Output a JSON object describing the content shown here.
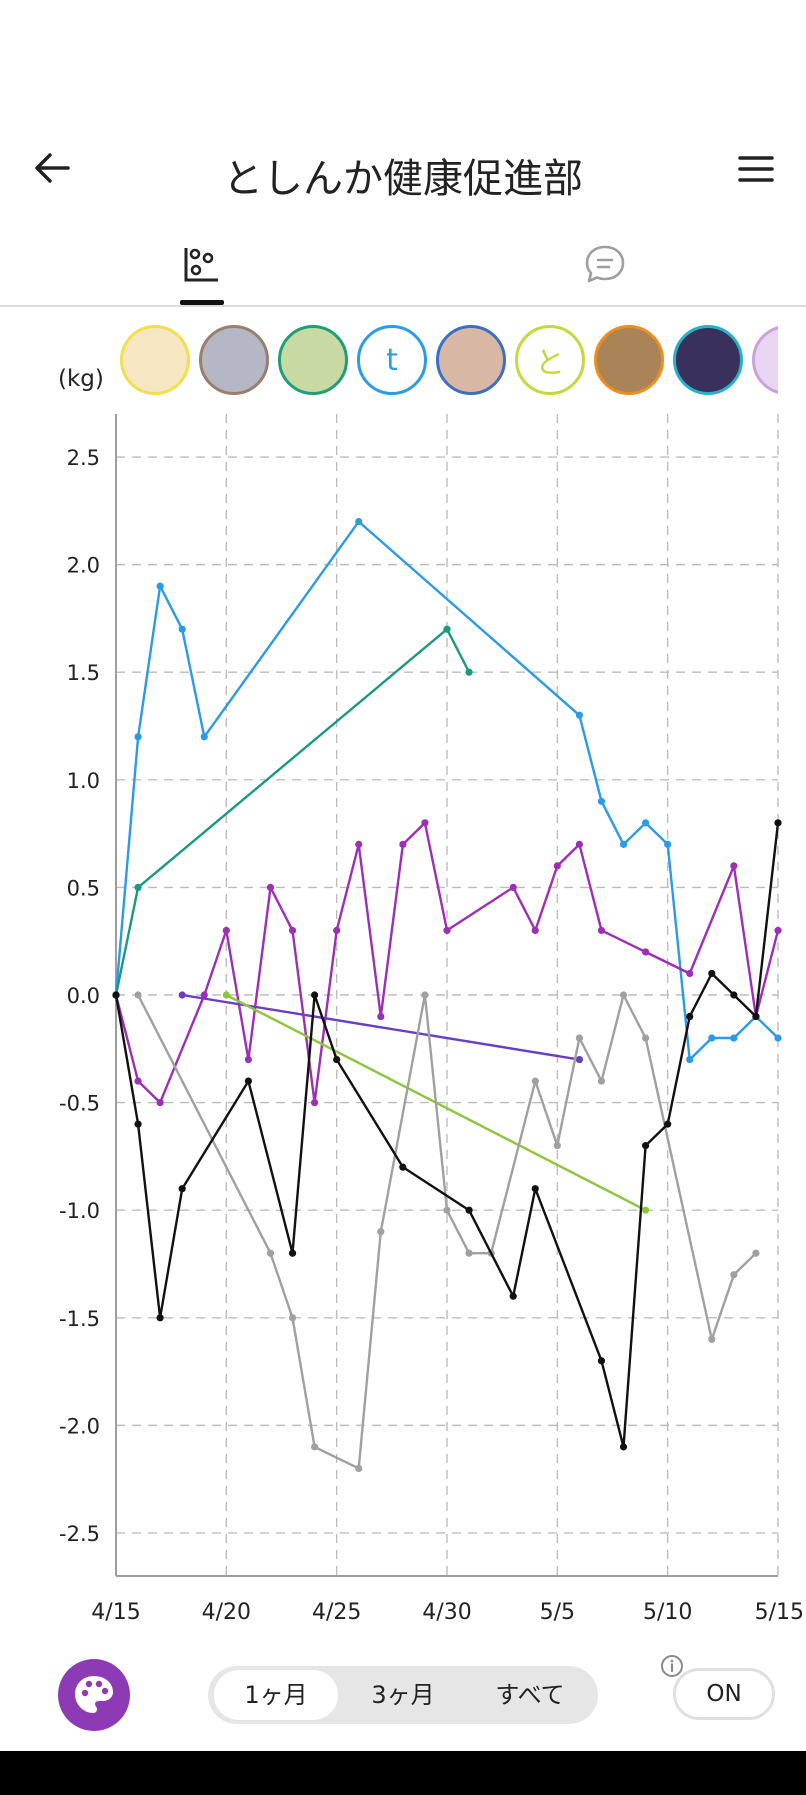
{
  "header": {
    "title": "としんか健康促進部",
    "back_icon": "arrow-left-icon",
    "menu_icon": "hamburger-menu-icon"
  },
  "tabs": [
    {
      "name": "graph",
      "icon": "scatter-chart-icon",
      "selected": true
    },
    {
      "name": "chat",
      "icon": "chat-bubble-icon",
      "selected": false
    }
  ],
  "avatars": [
    {
      "border": "#f2df4e",
      "fill": "#f6e7c2",
      "letter": ""
    },
    {
      "border": "#9a7e6e",
      "fill": "#b4b8c4",
      "letter": ""
    },
    {
      "border": "#1f9e78",
      "fill": "#c9d9a4",
      "letter": ""
    },
    {
      "border": "#2d9be6",
      "fill": "#ffffff",
      "letter": "t"
    },
    {
      "border": "#3b6fc4",
      "fill": "#d8b8a4",
      "letter": ""
    },
    {
      "border": "#c5d83d",
      "fill": "#ffffff",
      "letter": "と"
    },
    {
      "border": "#f08c1c",
      "fill": "#a88458",
      "letter": ""
    },
    {
      "border": "#27b3c7",
      "fill": "#39315c",
      "letter": ""
    },
    {
      "border": "#c9a2dc",
      "fill": "#e8d6f0",
      "letter": ""
    }
  ],
  "unit_label": "(kg)",
  "chart_data": {
    "type": "line",
    "x_start": "2024-04-15",
    "x_labels": [
      "4/15",
      "4/20",
      "4/25",
      "4/30",
      "5/5",
      "5/10",
      "5/15"
    ],
    "xlim": [
      0,
      30
    ],
    "ylim": [
      -2.7,
      2.7
    ],
    "y_ticks": [
      "2.5",
      "2.0",
      "1.5",
      "1.0",
      "0.5",
      "0.0",
      "-0.5",
      "-1.0",
      "-1.5",
      "-2.0",
      "-2.5"
    ],
    "y_tick_values": [
      2.5,
      2.0,
      1.5,
      1.0,
      0.5,
      0.0,
      -0.5,
      -1.0,
      -1.5,
      -2.0,
      -2.5
    ],
    "grid": true,
    "series": [
      {
        "color": "#2b9be6",
        "points": [
          [
            0,
            0
          ],
          [
            1,
            1.2
          ],
          [
            2,
            1.9
          ],
          [
            3,
            1.7
          ],
          [
            4,
            1.2
          ],
          [
            11,
            2.2
          ],
          [
            21,
            1.3
          ],
          [
            22,
            0.9
          ],
          [
            23,
            0.7
          ],
          [
            24,
            0.8
          ],
          [
            25,
            0.7
          ],
          [
            26,
            -0.3
          ],
          [
            27,
            -0.2
          ],
          [
            28,
            -0.2
          ],
          [
            29,
            -0.1
          ],
          [
            30,
            -0.2
          ]
        ]
      },
      {
        "color": "#1a9a7e",
        "points": [
          [
            0,
            0
          ],
          [
            1,
            0.5
          ],
          [
            15,
            1.7
          ],
          [
            16,
            1.5
          ]
        ]
      },
      {
        "color": "#9c2fb5",
        "points": [
          [
            0,
            0
          ],
          [
            1,
            -0.4
          ],
          [
            2,
            -0.5
          ],
          [
            4,
            0
          ],
          [
            5,
            0.3
          ],
          [
            6,
            -0.3
          ],
          [
            7,
            0.5
          ],
          [
            8,
            0.3
          ],
          [
            9,
            -0.5
          ],
          [
            10,
            0.3
          ],
          [
            11,
            0.7
          ],
          [
            12,
            -0.1
          ],
          [
            13,
            0.7
          ],
          [
            14,
            0.8
          ],
          [
            15,
            0.3
          ],
          [
            18,
            0.5
          ],
          [
            19,
            0.3
          ],
          [
            20,
            0.6
          ],
          [
            21,
            0.7
          ],
          [
            22,
            0.3
          ],
          [
            24,
            0.2
          ],
          [
            26,
            0.1
          ],
          [
            28,
            0.6
          ],
          [
            29,
            -0.1
          ],
          [
            30,
            0.3
          ]
        ]
      },
      {
        "color": "#6a3ec4",
        "points": [
          [
            3,
            0
          ],
          [
            21,
            -0.3
          ]
        ]
      },
      {
        "color": "#8cc63f",
        "points": [
          [
            5,
            0
          ],
          [
            24,
            -1.0
          ]
        ]
      },
      {
        "color": "#a0a0a0",
        "points": [
          [
            1,
            0
          ],
          [
            7,
            -1.2
          ],
          [
            8,
            -1.5
          ],
          [
            9,
            -2.1
          ],
          [
            11,
            -2.2
          ],
          [
            12,
            -1.1
          ],
          [
            14,
            0
          ],
          [
            15,
            -1.0
          ],
          [
            16,
            -1.2
          ],
          [
            17,
            -1.2
          ],
          [
            19,
            -0.4
          ],
          [
            20,
            -0.7
          ],
          [
            21,
            -0.2
          ],
          [
            22,
            -0.4
          ],
          [
            23,
            0
          ],
          [
            24,
            -0.2
          ],
          [
            27,
            -1.6
          ],
          [
            28,
            -1.3
          ],
          [
            29,
            -1.2
          ]
        ]
      },
      {
        "color": "#111111",
        "points": [
          [
            0,
            0
          ],
          [
            1,
            -0.6
          ],
          [
            2,
            -1.5
          ],
          [
            3,
            -0.9
          ],
          [
            6,
            -0.4
          ],
          [
            8,
            -1.2
          ],
          [
            9,
            0
          ],
          [
            10,
            -0.3
          ],
          [
            13,
            -0.8
          ],
          [
            16,
            -1.0
          ],
          [
            18,
            -1.4
          ],
          [
            19,
            -0.9
          ],
          [
            22,
            -1.7
          ],
          [
            23,
            -2.1
          ],
          [
            24,
            -0.7
          ],
          [
            25,
            -0.6
          ],
          [
            26,
            -0.1
          ],
          [
            27,
            0.1
          ],
          [
            28,
            0
          ],
          [
            29,
            -0.1
          ],
          [
            30,
            0.8
          ]
        ]
      }
    ]
  },
  "bottom": {
    "palette_icon": "palette-icon",
    "periods": [
      "1ヶ月",
      "3ヶ月",
      "すべて"
    ],
    "selected_period": 0,
    "info_icon": "info-icon",
    "toggle_label": "ON"
  }
}
